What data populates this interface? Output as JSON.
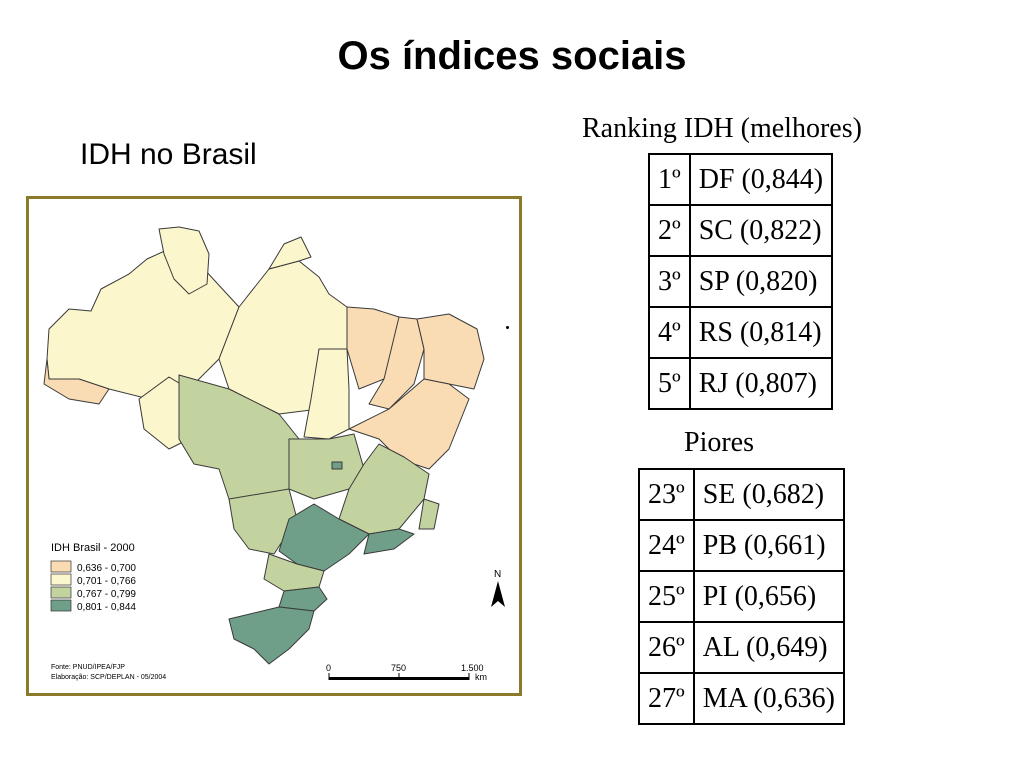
{
  "slide": {
    "title": "Os índices sociais",
    "map_caption": "IDH no Brasil",
    "best_caption": "Ranking IDH (melhores)",
    "worst_caption": "Piores"
  },
  "map": {
    "legend_title": "IDH Brasil - 2000",
    "legend": [
      {
        "label": "0,636 - 0,700",
        "color": "#f9dcb4"
      },
      {
        "label": "0,701 - 0,766",
        "color": "#fbf6cc"
      },
      {
        "label": "0,767 - 0,799",
        "color": "#c3d3a0"
      },
      {
        "label": "0,801 - 0,844",
        "color": "#6f9f88"
      }
    ],
    "scale": {
      "zero": "0",
      "mid": "750",
      "max": "1.500",
      "unit": "km"
    },
    "north": "N",
    "source": "Fonte: PNUD/IPEA/FJP",
    "credit": "Elaboração: SCP/DEPLAN - 05/2004"
  },
  "best": [
    {
      "rank": "1º",
      "state": "DF (0,844)"
    },
    {
      "rank": "2º",
      "state": "SC (0,822)"
    },
    {
      "rank": "3º",
      "state": "SP (0,820)"
    },
    {
      "rank": "4º",
      "state": "RS (0,814)"
    },
    {
      "rank": "5º",
      "state": "RJ (0,807)"
    }
  ],
  "worst": [
    {
      "rank": "23º",
      "state": "SE (0,682)"
    },
    {
      "rank": "24º",
      "state": "PB (0,661)"
    },
    {
      "rank": "25º",
      "state": "PI (0,656)"
    },
    {
      "rank": "26º",
      "state": "AL (0,649)"
    },
    {
      "rank": "27º",
      "state": "MA (0,636)"
    }
  ]
}
